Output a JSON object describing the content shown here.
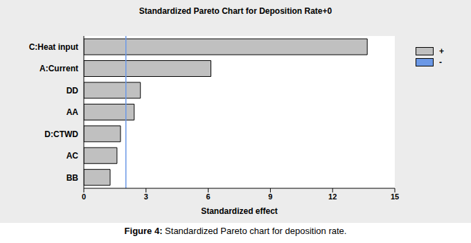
{
  "chart_data": {
    "type": "bar",
    "orientation": "horizontal",
    "title": "Standardized Pareto Chart for Deposition Rate+0",
    "caption": "Figure 4: Standardized Pareto chart for deposition rate.",
    "x_label": "Standardized effect",
    "categories": [
      "C:Heat input",
      "A:Current",
      "DD",
      "AA",
      "D:CTWD",
      "AC",
      "BB"
    ],
    "series": [
      {
        "name": "+",
        "color": "#c0c0c0",
        "values": [
          13.67,
          6.13,
          2.73,
          2.43,
          1.77,
          1.6,
          1.27
        ]
      },
      {
        "name": "-",
        "color": "#6b98e6",
        "values": [
          null,
          null,
          null,
          null,
          null,
          null,
          null
        ]
      }
    ],
    "reference_line": 2.03,
    "xlim": [
      0,
      15
    ],
    "xticks": [
      0,
      3,
      6,
      9,
      12,
      15
    ],
    "legend": "top-right"
  }
}
